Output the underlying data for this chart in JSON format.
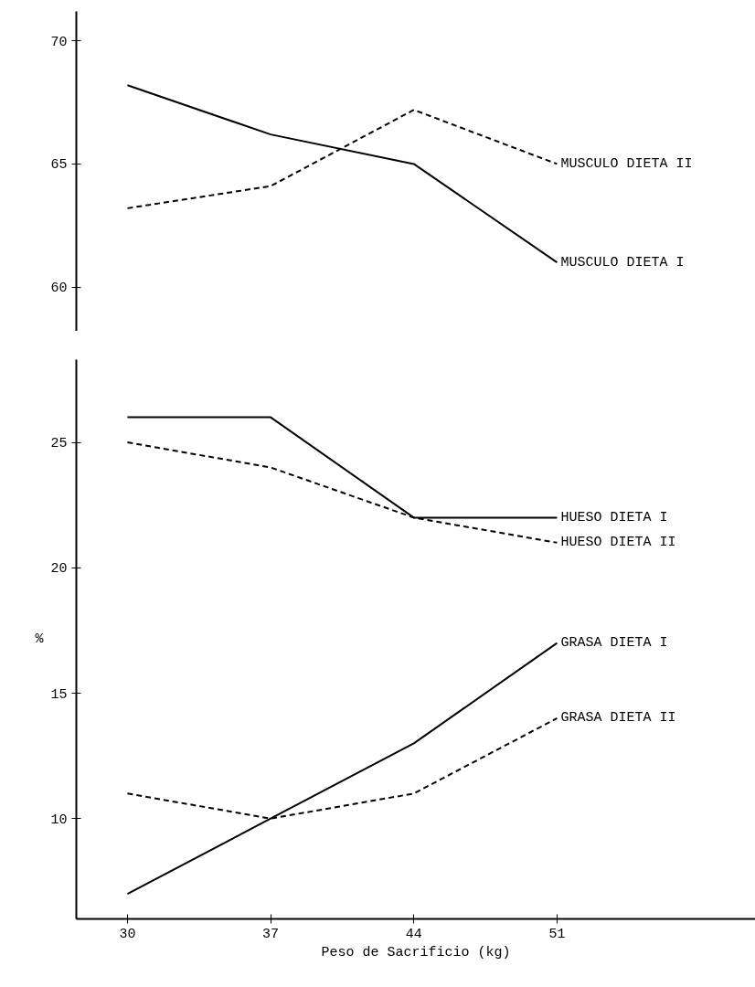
{
  "chart_data": [
    {
      "type": "line",
      "x": [
        30,
        37,
        44,
        51
      ],
      "ylim": [
        58.2,
        71.2
      ],
      "yticks": [
        60,
        65,
        70
      ],
      "tick_labels": "y",
      "grid": false,
      "marker": "none",
      "series": [
        {
          "name": "MUSCULO DIETA II",
          "color": "#000000",
          "line_style": "dashed",
          "values": [
            63.2,
            64.1,
            67.2,
            65
          ]
        },
        {
          "name": "MUSCULO DIETA I",
          "color": "#000000",
          "line_style": "solid",
          "values": [
            68.2,
            66.2,
            65,
            61
          ]
        }
      ]
    },
    {
      "type": "line",
      "x": [
        30,
        37,
        44,
        51
      ],
      "xlim": [
        27.5,
        60.7
      ],
      "ylim": [
        6,
        28.3
      ],
      "xticks": [
        30,
        37,
        44,
        51
      ],
      "yticks": [
        10,
        15,
        20,
        25
      ],
      "xlabel": "Peso de Sacrificio (kg)",
      "ylabel": "%",
      "grid": false,
      "marker": "none",
      "series": [
        {
          "name": "HUESO DIETA I",
          "color": "#000000",
          "line_style": "solid",
          "values": [
            26,
            26,
            22,
            22
          ]
        },
        {
          "name": "HUESO DIETA II",
          "color": "#000000",
          "line_style": "dashed",
          "values": [
            25,
            24,
            22,
            21
          ]
        },
        {
          "name": "GRASA DIETA I",
          "color": "#000000",
          "line_style": "solid",
          "values": [
            7,
            10,
            13,
            17
          ]
        },
        {
          "name": "GRASA DIETA II",
          "color": "#000000",
          "line_style": "dashed",
          "values": [
            11,
            10,
            11,
            14
          ]
        }
      ]
    }
  ]
}
